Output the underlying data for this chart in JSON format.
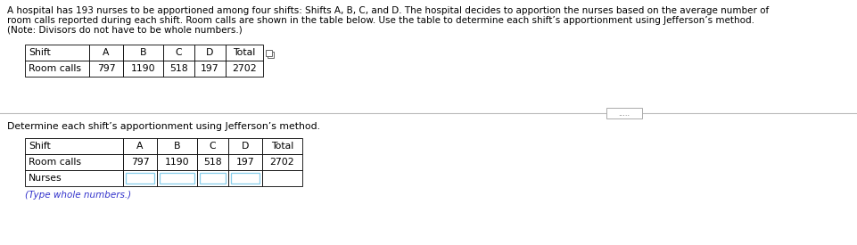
{
  "title_line1": "A hospital has 193 nurses to be apportioned among four shifts: Shifts A, B, C, and D. The hospital decides to apportion the nurses based on the average number of",
  "title_line2": "room calls reported during each shift. Room calls are shown in the table below. Use the table to determine each shift’s apportionment using Jefferson’s method.",
  "title_line3": "(Note: Divisors do not have to be whole numbers.)",
  "table1_headers": [
    "Shift",
    "A",
    "B",
    "C",
    "D",
    "Total"
  ],
  "table1_row": [
    "Room calls",
    "797",
    "1190",
    "518",
    "197",
    "2702"
  ],
  "instruction": "Determine each shift’s apportionment using Jefferson’s method.",
  "table2_headers": [
    "Shift",
    "A",
    "B",
    "C",
    "D",
    "Total"
  ],
  "table2_row1": [
    "Room calls",
    "797",
    "1190",
    "518",
    "197",
    "2702"
  ],
  "table2_row2": [
    "Nurses",
    "",
    "",
    "",
    "",
    ""
  ],
  "footnote": "(Type whole numbers.)",
  "bg_color": "#ffffff",
  "text_color": "#000000",
  "table_border_color": "#000000",
  "input_box_color": "#87CEEB",
  "footnote_color": "#3333cc"
}
